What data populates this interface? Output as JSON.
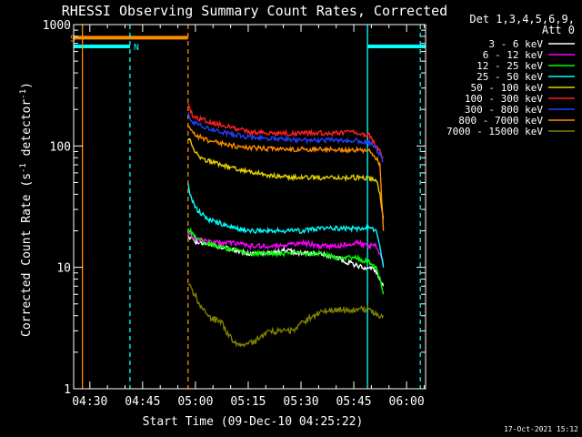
{
  "chart_data": {
    "type": "line",
    "title": "RHESSI Observing Summary Count Rates, Corrected",
    "xlabel": "Start Time (09-Dec-10 04:25:22)",
    "ylabel": "Corrected Count Rate (s⁻¹ detector⁻¹)",
    "ylabel_main": "Corrected Count Rate (s",
    "ylabel_mid": " detector",
    "ylabel_close": ")",
    "ylabel_sup": "-1",
    "x_unit": "minutes since 04:25:22",
    "xlim": [
      0,
      100
    ],
    "x_tick_labels": [
      "04:30",
      "04:45",
      "05:00",
      "05:15",
      "05:30",
      "05:45",
      "06:00"
    ],
    "x_tick_minutes": [
      4.6,
      19.6,
      34.6,
      49.6,
      64.6,
      79.6,
      94.6
    ],
    "ylim": [
      1,
      1000
    ],
    "y_scale": "log",
    "y_tick_labels": [
      "1",
      "10",
      "100",
      "1000"
    ],
    "y_tick_values": [
      1,
      10,
      100,
      1000
    ],
    "legend_header": [
      "Det 1,3,4,5,6,9,",
      "Att 0"
    ],
    "legend_placement": "top-right, outside plot",
    "timestamp": "17-Oct-2021 15:12",
    "flag_bars": [
      {
        "label": "S",
        "color": "#ff8c00",
        "x": [
          0,
          32.5
        ],
        "level": 780
      },
      {
        "label": "N",
        "color": "#00ffff",
        "x": [
          0,
          16.0
        ],
        "level": 660
      },
      {
        "label": "",
        "color": "#00ffff",
        "x": [
          83.5,
          100
        ],
        "level": 660
      }
    ],
    "vlines": [
      {
        "x": 2.5,
        "color": "#ff8c00",
        "style": "solid"
      },
      {
        "x": 16.0,
        "color": "#00ffff",
        "style": "dashed"
      },
      {
        "x": 32.5,
        "color": "#ff8c00",
        "style": "dashed"
      },
      {
        "x": 83.5,
        "color": "#00ffff",
        "style": "solid"
      },
      {
        "x": 98.5,
        "color": "#00ffff",
        "style": "dashed"
      }
    ],
    "series": [
      {
        "name": "3 - 6 keV",
        "color": "#ffffff",
        "x": [
          32.5,
          35,
          40,
          45,
          50,
          55,
          60,
          65,
          70,
          75,
          78,
          82,
          85,
          86,
          87,
          88
        ],
        "values": [
          18,
          16,
          15,
          14,
          13,
          13,
          14,
          13,
          13,
          12,
          11,
          10,
          10,
          9,
          8,
          7
        ]
      },
      {
        "name": "6 - 12 keV",
        "color": "#ff00ff",
        "x": [
          32.5,
          35,
          40,
          45,
          50,
          55,
          60,
          65,
          70,
          75,
          80,
          84,
          86,
          87,
          88
        ],
        "values": [
          19,
          17,
          16,
          16,
          15,
          15,
          15,
          16,
          15,
          15,
          16,
          15,
          15,
          13,
          10
        ]
      },
      {
        "name": "12 - 25 keV",
        "color": "#00ff00",
        "x": [
          32.5,
          35,
          40,
          45,
          50,
          55,
          60,
          65,
          70,
          75,
          80,
          84,
          86,
          87,
          88
        ],
        "values": [
          21,
          17,
          15,
          14,
          13,
          13,
          13,
          13,
          13,
          12,
          12,
          11,
          10,
          8,
          6
        ]
      },
      {
        "name": "25 - 50 keV",
        "color": "#00ffff",
        "x": [
          32.5,
          33,
          35,
          38,
          42,
          46,
          50,
          55,
          60,
          65,
          70,
          75,
          80,
          84,
          86,
          87,
          88
        ],
        "values": [
          48,
          40,
          30,
          25,
          23,
          21,
          20,
          20,
          20,
          20,
          21,
          21,
          21,
          21,
          20,
          15,
          10
        ]
      },
      {
        "name": "50 - 100 keV",
        "color": "#e5d000",
        "x": [
          32.5,
          34,
          36,
          40,
          45,
          50,
          55,
          60,
          65,
          70,
          75,
          80,
          84,
          86,
          87,
          88
        ],
        "values": [
          120,
          95,
          80,
          72,
          66,
          62,
          58,
          56,
          55,
          55,
          55,
          55,
          54,
          52,
          40,
          25
        ]
      },
      {
        "name": "100 - 300 keV",
        "color": "#ff2020",
        "x": [
          32.5,
          34,
          38,
          42,
          46,
          50,
          55,
          60,
          65,
          70,
          75,
          80,
          84,
          86,
          87,
          88
        ],
        "values": [
          220,
          175,
          160,
          150,
          140,
          130,
          128,
          127,
          127,
          128,
          128,
          130,
          122,
          100,
          90,
          80
        ]
      },
      {
        "name": "300 - 800 keV",
        "color": "#2040ff",
        "x": [
          32.5,
          34,
          38,
          42,
          46,
          50,
          55,
          60,
          65,
          70,
          75,
          80,
          84,
          86,
          87,
          88
        ],
        "values": [
          185,
          155,
          140,
          130,
          123,
          118,
          115,
          113,
          112,
          112,
          112,
          111,
          108,
          95,
          85,
          75
        ]
      },
      {
        "name": "800 - 7000 keV",
        "color": "#ff8c00",
        "x": [
          32.5,
          34,
          38,
          42,
          46,
          50,
          55,
          60,
          65,
          70,
          75,
          80,
          84,
          86,
          87,
          88
        ],
        "values": [
          150,
          125,
          112,
          105,
          100,
          97,
          95,
          94,
          94,
          94,
          94,
          93,
          90,
          80,
          70,
          20
        ]
      },
      {
        "name": "7000 - 15000 keV",
        "color": "#808000",
        "x": [
          32.5,
          35,
          38,
          42,
          45,
          48,
          52,
          55,
          58,
          62,
          65,
          68,
          72,
          75,
          80,
          84,
          86,
          88
        ],
        "values": [
          7.5,
          5.5,
          4,
          3.5,
          2.5,
          2.2,
          2.5,
          3,
          3,
          3,
          3.5,
          4,
          4.5,
          4.5,
          4.5,
          4.5,
          4,
          4
        ]
      }
    ]
  }
}
